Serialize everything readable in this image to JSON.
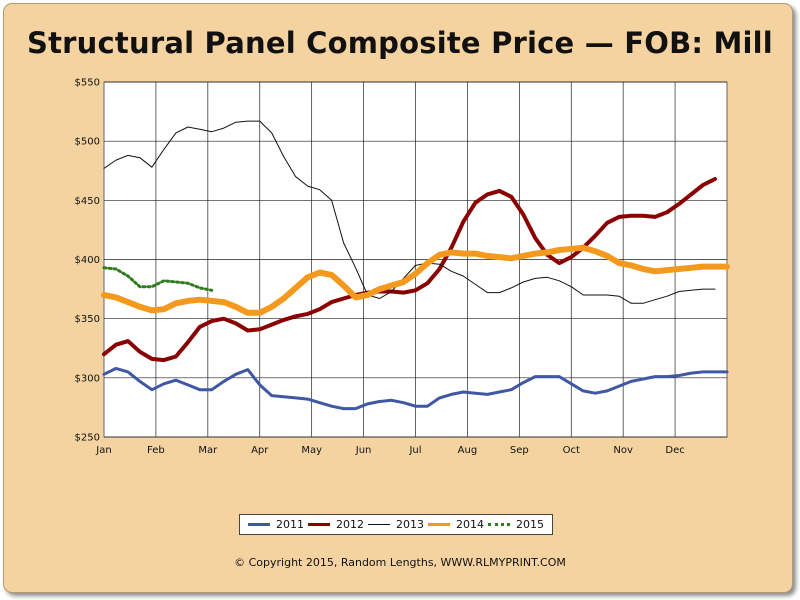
{
  "chart_data": {
    "type": "line",
    "title": "Structural Panel Composite Price — FOB: Mill",
    "xlabel": "",
    "ylabel": "",
    "ylim": [
      250,
      550
    ],
    "y_ticks": [
      "$250",
      "$300",
      "$350",
      "$400",
      "$450",
      "$500",
      "$550"
    ],
    "y_tick_values": [
      250,
      300,
      350,
      400,
      450,
      500,
      550
    ],
    "x_ticks": [
      "Jan",
      "Feb",
      "Mar",
      "Apr",
      "May",
      "Jun",
      "Jul",
      "Aug",
      "Sep",
      "Oct",
      "Nov",
      "Dec"
    ],
    "x_unit": "week",
    "xlim": [
      0,
      52
    ],
    "grid": true,
    "legend_position": "bottom",
    "series": [
      {
        "name": "2011",
        "color": "#3f57a4",
        "stroke_width": 3,
        "dash": "",
        "x": [
          0,
          1,
          2,
          3,
          4,
          5,
          6,
          7,
          8,
          9,
          10,
          11,
          12,
          13,
          14,
          15,
          16,
          17,
          18,
          19,
          20,
          21,
          22,
          23,
          24,
          25,
          26,
          27,
          28,
          29,
          30,
          31,
          32,
          33,
          34,
          35,
          36,
          37,
          38,
          39,
          40,
          41,
          42,
          43,
          44,
          45,
          46,
          47,
          48,
          49,
          50,
          51,
          52
        ],
        "values": [
          303,
          308,
          305,
          297,
          290,
          295,
          298,
          294,
          290,
          290,
          297,
          303,
          307,
          294,
          285,
          284,
          283,
          282,
          279,
          276,
          274,
          274,
          278,
          280,
          281,
          279,
          276,
          276,
          283,
          286,
          288,
          287,
          286,
          288,
          290,
          296,
          301,
          301,
          301,
          295,
          289,
          287,
          289,
          293,
          297,
          299,
          301,
          301,
          302,
          304,
          305,
          305,
          305
        ]
      },
      {
        "name": "2012",
        "color": "#8b0000",
        "stroke_width": 4,
        "dash": "",
        "x": [
          0,
          1,
          2,
          3,
          4,
          5,
          6,
          7,
          8,
          9,
          10,
          11,
          12,
          13,
          14,
          15,
          16,
          17,
          18,
          19,
          20,
          21,
          22,
          23,
          24,
          25,
          26,
          27,
          28,
          29,
          30,
          31,
          32,
          33,
          34,
          35,
          36,
          37,
          38,
          39,
          40,
          41,
          42,
          43,
          44,
          45,
          46,
          47,
          48,
          49,
          50,
          51
        ],
        "values": [
          320,
          328,
          331,
          322,
          316,
          315,
          318,
          330,
          343,
          348,
          350,
          346,
          340,
          341,
          345,
          349,
          352,
          354,
          358,
          364,
          367,
          370,
          372,
          373,
          373,
          372,
          374,
          380,
          392,
          410,
          432,
          448,
          455,
          458,
          453,
          438,
          418,
          404,
          397,
          402,
          410,
          420,
          431,
          436,
          437,
          437,
          436,
          440,
          447,
          455,
          463,
          468
        ]
      },
      {
        "name": "2013",
        "color": "#111111",
        "stroke_width": 1,
        "dash": "",
        "x": [
          0,
          1,
          2,
          3,
          4,
          5,
          6,
          7,
          8,
          9,
          10,
          11,
          12,
          13,
          14,
          15,
          16,
          17,
          18,
          19,
          20,
          21,
          22,
          23,
          24,
          25,
          26,
          27,
          28,
          29,
          30,
          31,
          32,
          33,
          34,
          35,
          36,
          37,
          38,
          39,
          40,
          41,
          42,
          43,
          44,
          45,
          46,
          47,
          48,
          49,
          50,
          51
        ],
        "values": [
          477,
          484,
          488,
          486,
          478,
          493,
          507,
          512,
          510,
          508,
          511,
          516,
          517,
          517,
          507,
          487,
          470,
          462,
          459,
          450,
          414,
          393,
          370,
          367,
          373,
          384,
          395,
          397,
          396,
          390,
          386,
          379,
          372,
          372,
          376,
          381,
          384,
          385,
          382,
          377,
          370,
          370,
          370,
          369,
          363,
          363,
          366,
          369,
          373,
          374,
          375,
          375
        ]
      },
      {
        "name": "2014",
        "color": "#f39a1e",
        "stroke_width": 6,
        "dash": "",
        "x": [
          0,
          1,
          2,
          3,
          4,
          5,
          6,
          7,
          8,
          9,
          10,
          11,
          12,
          13,
          14,
          15,
          16,
          17,
          18,
          19,
          20,
          21,
          22,
          23,
          24,
          25,
          26,
          27,
          28,
          29,
          30,
          31,
          32,
          33,
          34,
          35,
          36,
          37,
          38,
          39,
          40,
          41,
          42,
          43,
          44,
          45,
          46,
          47,
          48,
          49,
          50,
          51,
          52
        ],
        "values": [
          370,
          368,
          364,
          360,
          357,
          358,
          363,
          365,
          366,
          365,
          364,
          360,
          355,
          355,
          360,
          367,
          376,
          385,
          389,
          387,
          378,
          368,
          370,
          375,
          378,
          381,
          388,
          397,
          404,
          406,
          405,
          405,
          403,
          402,
          401,
          403,
          405,
          406,
          408,
          409,
          410,
          407,
          403,
          397,
          395,
          392,
          390,
          391,
          392,
          393,
          394,
          394,
          394
        ]
      },
      {
        "name": "2015",
        "color": "#2f7b1f",
        "stroke_width": 3,
        "dash": "2,3",
        "x": [
          0,
          1,
          2,
          3,
          4,
          5,
          6,
          7,
          8,
          9
        ],
        "values": [
          393,
          392,
          386,
          377,
          377,
          382,
          381,
          380,
          376,
          374
        ]
      }
    ]
  },
  "copyright": "© Copyright 2015, Random Lengths, WWW.RLMYPRINT.COM"
}
